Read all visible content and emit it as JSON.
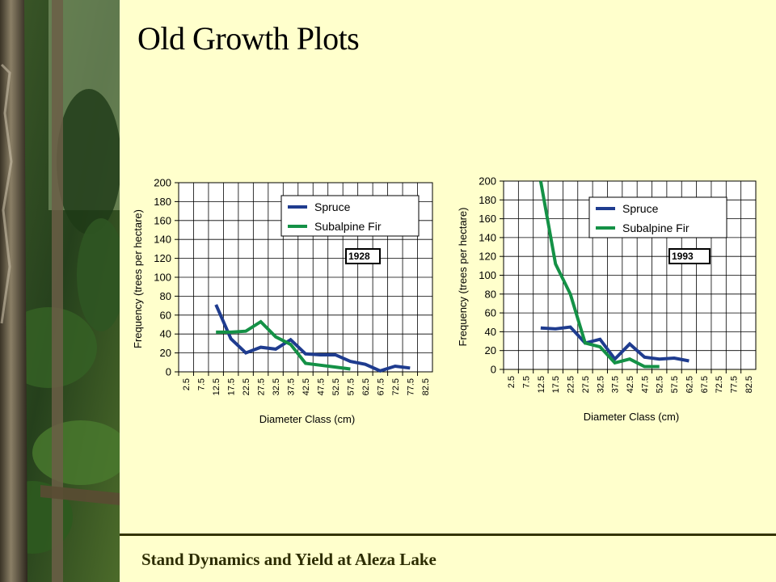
{
  "slide": {
    "title": "Old Growth Plots",
    "footer": "Stand Dynamics and Yield at Aleza Lake"
  },
  "colors": {
    "background": "#FFFFCC",
    "spruce": "#1F3C8F",
    "subalpine_fir": "#149146",
    "footer_rule": "#333300"
  },
  "chart_data": [
    {
      "type": "line",
      "year_label": "1928",
      "xlabel": "Diameter Class (cm)",
      "ylabel": "Frequency (trees per hectare)",
      "ylim": [
        0,
        200
      ],
      "yticks": [
        0,
        20,
        40,
        60,
        80,
        100,
        120,
        140,
        160,
        180,
        200
      ],
      "grid": true,
      "legend_position": "top-right",
      "categories": [
        "2.5",
        "7.5",
        "12.5",
        "17.5",
        "22.5",
        "27.5",
        "32.5",
        "37.5",
        "42.5",
        "47.5",
        "52.5",
        "57.5",
        "62.5",
        "67.5",
        "72.5",
        "77.5",
        "82.5"
      ],
      "series": [
        {
          "name": "Spruce",
          "values": [
            null,
            null,
            71,
            35,
            20,
            26,
            24,
            34,
            19,
            18,
            18,
            11,
            8,
            1,
            6,
            4,
            null
          ]
        },
        {
          "name": "Subalpine Fir",
          "values": [
            null,
            null,
            42,
            42,
            43,
            53,
            37,
            29,
            9,
            7,
            5,
            3,
            null,
            null,
            null,
            null,
            null
          ]
        }
      ]
    },
    {
      "type": "line",
      "year_label": "1993",
      "xlabel": "Diameter Class (cm)",
      "ylabel": "Frequency (trees per hectare)",
      "ylim": [
        0,
        200
      ],
      "yticks": [
        0,
        20,
        40,
        60,
        80,
        100,
        120,
        140,
        160,
        180,
        200
      ],
      "grid": true,
      "legend_position": "top-right",
      "categories": [
        "2.5",
        "7.5",
        "12.5",
        "17.5",
        "22.5",
        "27.5",
        "32.5",
        "37.5",
        "42.5",
        "47.5",
        "52.5",
        "57.5",
        "62.5",
        "67.5",
        "72.5",
        "77.5",
        "82.5"
      ],
      "series": [
        {
          "name": "Spruce",
          "values": [
            null,
            null,
            44,
            43,
            45,
            28,
            32,
            11,
            27,
            13,
            11,
            12,
            9,
            null,
            null,
            null,
            null
          ]
        },
        {
          "name": "Subalpine Fir",
          "values": [
            null,
            null,
            200,
            112,
            80,
            28,
            24,
            7,
            11,
            3,
            3,
            null,
            null,
            null,
            null,
            null,
            null
          ]
        }
      ]
    }
  ]
}
